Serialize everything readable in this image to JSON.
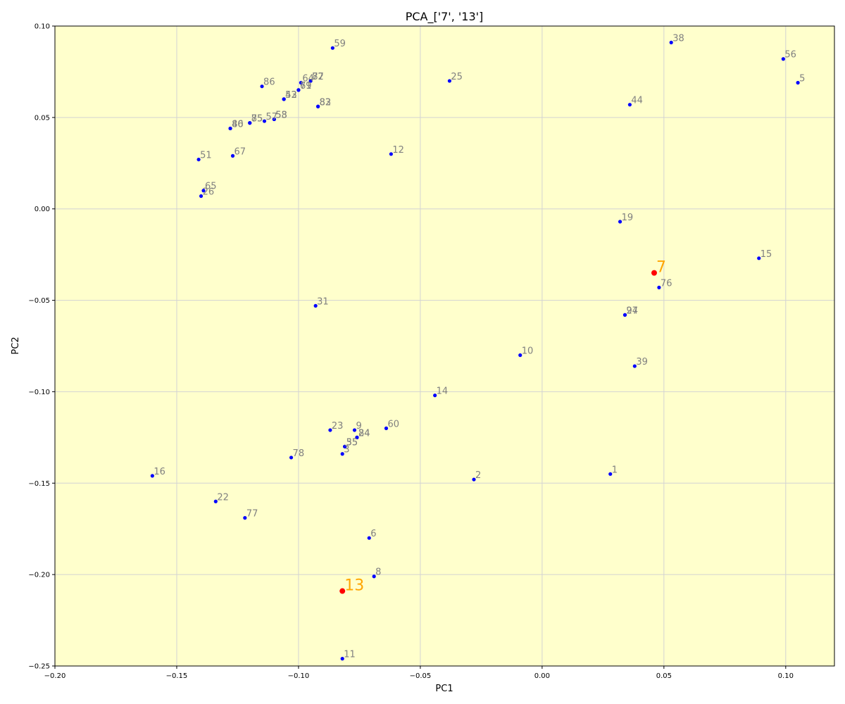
{
  "chart_data": {
    "type": "scatter",
    "title": "PCA_['7', '13']",
    "xlabel": "PC1",
    "ylabel": "PC2",
    "xlim": [
      -0.2,
      0.12
    ],
    "ylim": [
      -0.25,
      0.1
    ],
    "xticks": [
      -0.2,
      -0.15,
      -0.1,
      -0.05,
      0.0,
      0.05,
      0.1
    ],
    "xtick_labels": [
      "−0.20",
      "−0.15",
      "−0.10",
      "−0.05",
      "0.00",
      "0.05",
      "0.10"
    ],
    "yticks": [
      -0.25,
      -0.2,
      -0.15,
      -0.1,
      -0.05,
      0.0,
      0.05,
      0.1
    ],
    "ytick_labels": [
      "−0.25",
      "−0.20",
      "−0.15",
      "−0.10",
      "−0.05",
      "0.00",
      "0.05",
      "0.10"
    ],
    "grid": true,
    "background_color": "#ffffcc",
    "point_color": "#0000ff",
    "highlight_point_color": "#ff0000",
    "label_color": "#808080",
    "highlight_label_color": "#ffa500",
    "points": [
      {
        "label": "38",
        "x": 0.053,
        "y": 0.091
      },
      {
        "label": "56",
        "x": 0.099,
        "y": 0.082
      },
      {
        "label": "5",
        "x": 0.105,
        "y": 0.069
      },
      {
        "label": "59",
        "x": -0.086,
        "y": 0.088
      },
      {
        "label": "25",
        "x": -0.038,
        "y": 0.07
      },
      {
        "label": "44",
        "x": 0.036,
        "y": 0.057
      },
      {
        "label": "86",
        "x": -0.115,
        "y": 0.067
      },
      {
        "label": "64",
        "x": -0.099,
        "y": 0.069
      },
      {
        "label": "87",
        "x": -0.095,
        "y": 0.07
      },
      {
        "label": "72",
        "x": -0.095,
        "y": 0.07
      },
      {
        "label": "69",
        "x": -0.1,
        "y": 0.065
      },
      {
        "label": "71",
        "x": -0.1,
        "y": 0.065
      },
      {
        "label": "43",
        "x": -0.106,
        "y": 0.06
      },
      {
        "label": "52",
        "x": -0.106,
        "y": 0.06
      },
      {
        "label": "83",
        "x": -0.092,
        "y": 0.056
      },
      {
        "label": "82",
        "x": -0.092,
        "y": 0.056
      },
      {
        "label": "58",
        "x": -0.11,
        "y": 0.049
      },
      {
        "label": "53",
        "x": -0.11,
        "y": 0.049
      },
      {
        "label": "57",
        "x": -0.114,
        "y": 0.048
      },
      {
        "label": "75",
        "x": -0.12,
        "y": 0.047
      },
      {
        "label": "85",
        "x": -0.12,
        "y": 0.047
      },
      {
        "label": "46",
        "x": -0.128,
        "y": 0.044
      },
      {
        "label": "80",
        "x": -0.128,
        "y": 0.044
      },
      {
        "label": "12",
        "x": -0.062,
        "y": 0.03
      },
      {
        "label": "51",
        "x": -0.141,
        "y": 0.027
      },
      {
        "label": "67",
        "x": -0.127,
        "y": 0.029
      },
      {
        "label": "65",
        "x": -0.139,
        "y": 0.01
      },
      {
        "label": "26",
        "x": -0.14,
        "y": 0.007
      },
      {
        "label": "19",
        "x": 0.032,
        "y": -0.007
      },
      {
        "label": "15",
        "x": 0.089,
        "y": -0.027
      },
      {
        "label": "7",
        "x": 0.046,
        "y": -0.035,
        "highlight": true
      },
      {
        "label": "76",
        "x": 0.048,
        "y": -0.043
      },
      {
        "label": "31",
        "x": -0.093,
        "y": -0.053
      },
      {
        "label": "27",
        "x": 0.034,
        "y": -0.058
      },
      {
        "label": "94",
        "x": 0.034,
        "y": -0.058
      },
      {
        "label": "10",
        "x": -0.009,
        "y": -0.08
      },
      {
        "label": "39",
        "x": 0.038,
        "y": -0.086
      },
      {
        "label": "14",
        "x": -0.044,
        "y": -0.102
      },
      {
        "label": "23",
        "x": -0.087,
        "y": -0.121
      },
      {
        "label": "9",
        "x": -0.077,
        "y": -0.121
      },
      {
        "label": "60",
        "x": -0.064,
        "y": -0.12
      },
      {
        "label": "84",
        "x": -0.076,
        "y": -0.125
      },
      {
        "label": "24",
        "x": -0.076,
        "y": -0.125
      },
      {
        "label": "35",
        "x": -0.081,
        "y": -0.13
      },
      {
        "label": "55",
        "x": -0.081,
        "y": -0.13
      },
      {
        "label": "3",
        "x": -0.082,
        "y": -0.134
      },
      {
        "label": "78",
        "x": -0.103,
        "y": -0.136
      },
      {
        "label": "16",
        "x": -0.16,
        "y": -0.146
      },
      {
        "label": "1",
        "x": 0.028,
        "y": -0.145
      },
      {
        "label": "2",
        "x": -0.028,
        "y": -0.148
      },
      {
        "label": "22",
        "x": -0.134,
        "y": -0.16
      },
      {
        "label": "77",
        "x": -0.122,
        "y": -0.169
      },
      {
        "label": "6",
        "x": -0.071,
        "y": -0.18
      },
      {
        "label": "8",
        "x": -0.069,
        "y": -0.201
      },
      {
        "label": "13",
        "x": -0.082,
        "y": -0.209,
        "highlight": true
      },
      {
        "label": "11",
        "x": -0.082,
        "y": -0.246
      }
    ]
  }
}
